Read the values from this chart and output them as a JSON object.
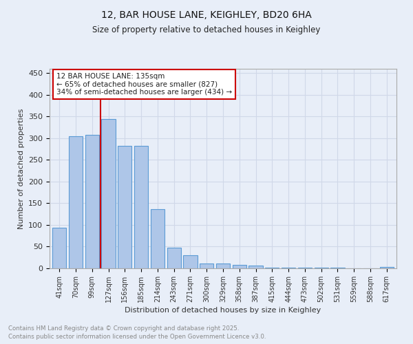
{
  "title1": "12, BAR HOUSE LANE, KEIGHLEY, BD20 6HA",
  "title2": "Size of property relative to detached houses in Keighley",
  "xlabel": "Distribution of detached houses by size in Keighley",
  "ylabel": "Number of detached properties",
  "categories": [
    "41sqm",
    "70sqm",
    "99sqm",
    "127sqm",
    "156sqm",
    "185sqm",
    "214sqm",
    "243sqm",
    "271sqm",
    "300sqm",
    "329sqm",
    "358sqm",
    "387sqm",
    "415sqm",
    "444sqm",
    "473sqm",
    "502sqm",
    "531sqm",
    "559sqm",
    "588sqm",
    "617sqm"
  ],
  "values": [
    93,
    305,
    307,
    345,
    282,
    283,
    136,
    47,
    30,
    11,
    11,
    8,
    6,
    2,
    2,
    1,
    1,
    1,
    0,
    0,
    3
  ],
  "bar_color": "#aec6e8",
  "bar_edge_color": "#5b9bd5",
  "vline_color": "#cc0000",
  "annotation_text": "12 BAR HOUSE LANE: 135sqm\n← 65% of detached houses are smaller (827)\n34% of semi-detached houses are larger (434) →",
  "annotation_box_color": "#ffffff",
  "annotation_box_edge": "#cc0000",
  "grid_color": "#d0d8e8",
  "background_color": "#e8eef8",
  "plot_bg_color": "#e8eef8",
  "footer1": "Contains HM Land Registry data © Crown copyright and database right 2025.",
  "footer2": "Contains public sector information licensed under the Open Government Licence v3.0.",
  "ylim": [
    0,
    460
  ],
  "yticks": [
    0,
    50,
    100,
    150,
    200,
    250,
    300,
    350,
    400,
    450
  ]
}
